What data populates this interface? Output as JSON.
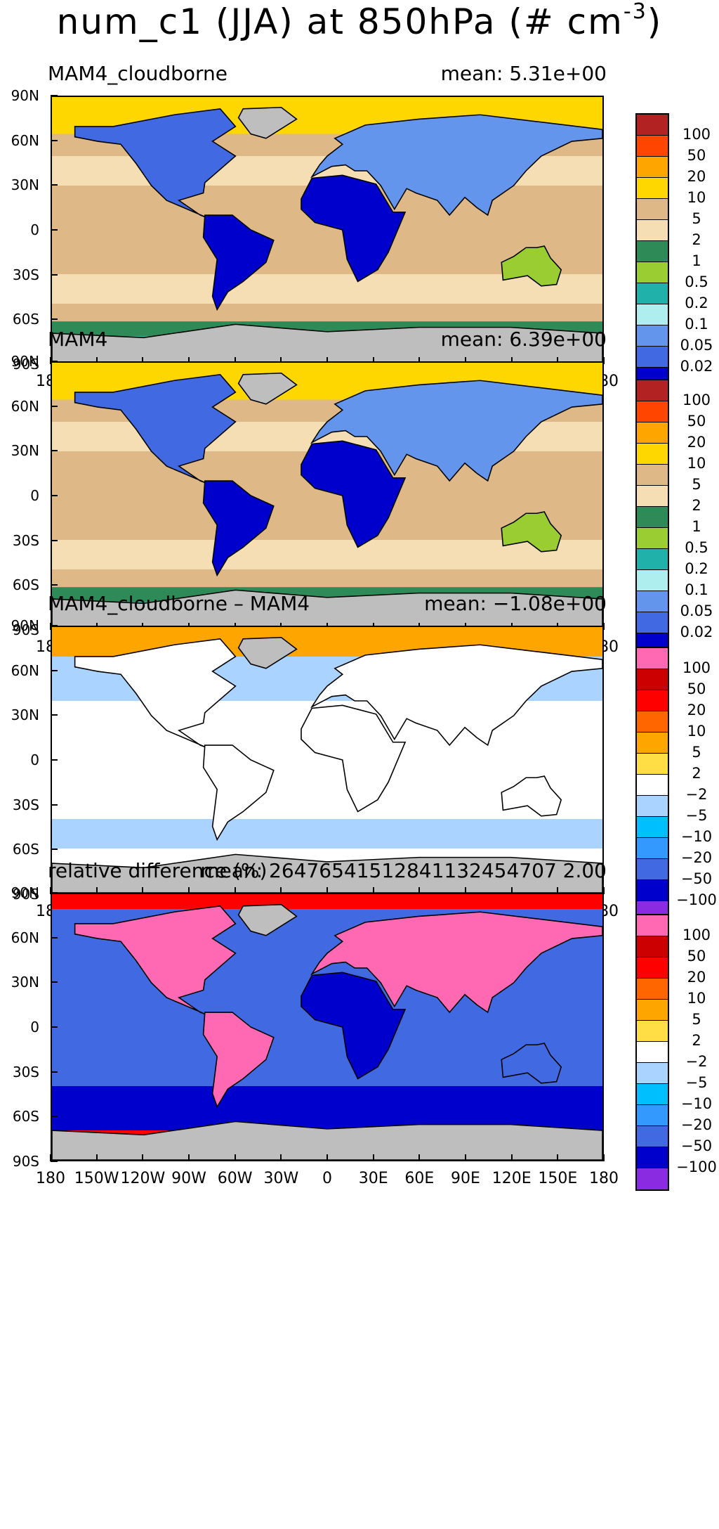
{
  "title": {
    "main": "num_c1 (JJA) at 850hPa (# cm",
    "sup": "-3",
    "end": ")"
  },
  "lat_labels": [
    "90N",
    "60N",
    "30N",
    "0",
    "30S",
    "60S",
    "90S"
  ],
  "lon_labels": [
    "180",
    "150W",
    "120W",
    "90W",
    "60W",
    "30W",
    "0",
    "30E",
    "60E",
    "90E",
    "120E",
    "150E",
    "180"
  ],
  "panels": [
    {
      "name": "MAM4_cloudborne",
      "title": "MAM4_cloudborne",
      "mean": "mean: 5.31e+00",
      "scale": "abs",
      "bg": "#e2c18f",
      "colorbar": {
        "colors": [
          "#b22222",
          "#ff4500",
          "#ffa500",
          "#ffd700",
          "#deb887",
          "#f5deb3",
          "#2e8b57",
          "#9acd32",
          "#20b2aa",
          "#afeeee",
          "#6495ed",
          "#4169e1",
          "#0000cd"
        ],
        "labels": [
          "100",
          "50",
          "20",
          "10",
          "5",
          "2",
          "1",
          "0.5",
          "0.2",
          "0.1",
          "0.05",
          "0.02"
        ]
      }
    },
    {
      "name": "MAM4",
      "title": "MAM4",
      "mean": "mean: 6.39e+00",
      "scale": "abs",
      "bg": "#e2c18f",
      "colorbar": {
        "colors": [
          "#b22222",
          "#ff4500",
          "#ffa500",
          "#ffd700",
          "#deb887",
          "#f5deb3",
          "#2e8b57",
          "#9acd32",
          "#20b2aa",
          "#afeeee",
          "#6495ed",
          "#4169e1",
          "#0000cd"
        ],
        "labels": [
          "100",
          "50",
          "20",
          "10",
          "5",
          "2",
          "1",
          "0.5",
          "0.2",
          "0.1",
          "0.05",
          "0.02"
        ]
      }
    },
    {
      "name": "difference",
      "title": "MAM4_cloudborne – MAM4",
      "mean": "mean: −1.08e+00",
      "scale": "diff",
      "bg": "#ffffff",
      "colorbar": {
        "colors": [
          "#ff69b4",
          "#cc0000",
          "#ff0000",
          "#ff6600",
          "#ffa500",
          "#ffdd44",
          "#ffffff",
          "#aad4ff",
          "#00bfff",
          "#3399ff",
          "#4169e1",
          "#0000cd",
          "#8a2be2"
        ],
        "labels": [
          "100",
          "50",
          "20",
          "10",
          "5",
          "2",
          "−2",
          "−5",
          "−10",
          "−20",
          "−50",
          "−100"
        ]
      }
    },
    {
      "name": "relative-difference",
      "title": "relative difference (%)",
      "mean": "mean: 26476541512841132454707 2.00",
      "scale": "diff",
      "bg": "#3a6fe0",
      "colorbar": {
        "colors": [
          "#ff69b4",
          "#cc0000",
          "#ff0000",
          "#ff6600",
          "#ffa500",
          "#ffdd44",
          "#ffffff",
          "#aad4ff",
          "#00bfff",
          "#3399ff",
          "#4169e1",
          "#0000cd",
          "#8a2be2"
        ],
        "labels": [
          "100",
          "50",
          "20",
          "10",
          "5",
          "2",
          "−2",
          "−5",
          "−10",
          "−20",
          "−50",
          "−100"
        ]
      }
    }
  ]
}
